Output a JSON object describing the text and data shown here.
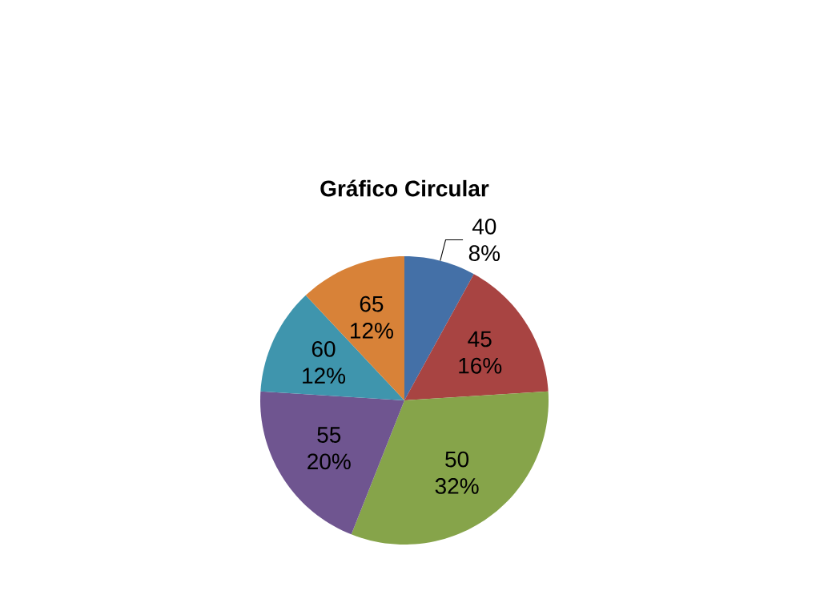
{
  "chart_data": {
    "type": "pie",
    "title": "Gráfico Circular",
    "categories": [
      "40",
      "45",
      "50",
      "55",
      "60",
      "65"
    ],
    "values": [
      8,
      16,
      32,
      20,
      12,
      12
    ],
    "colors": [
      "#4470a7",
      "#a84442",
      "#86a44a",
      "#6f5590",
      "#3f95ad",
      "#d88238"
    ],
    "value_labels": [
      "8%",
      "16%",
      "32%",
      "20%",
      "12%",
      "12%"
    ]
  }
}
